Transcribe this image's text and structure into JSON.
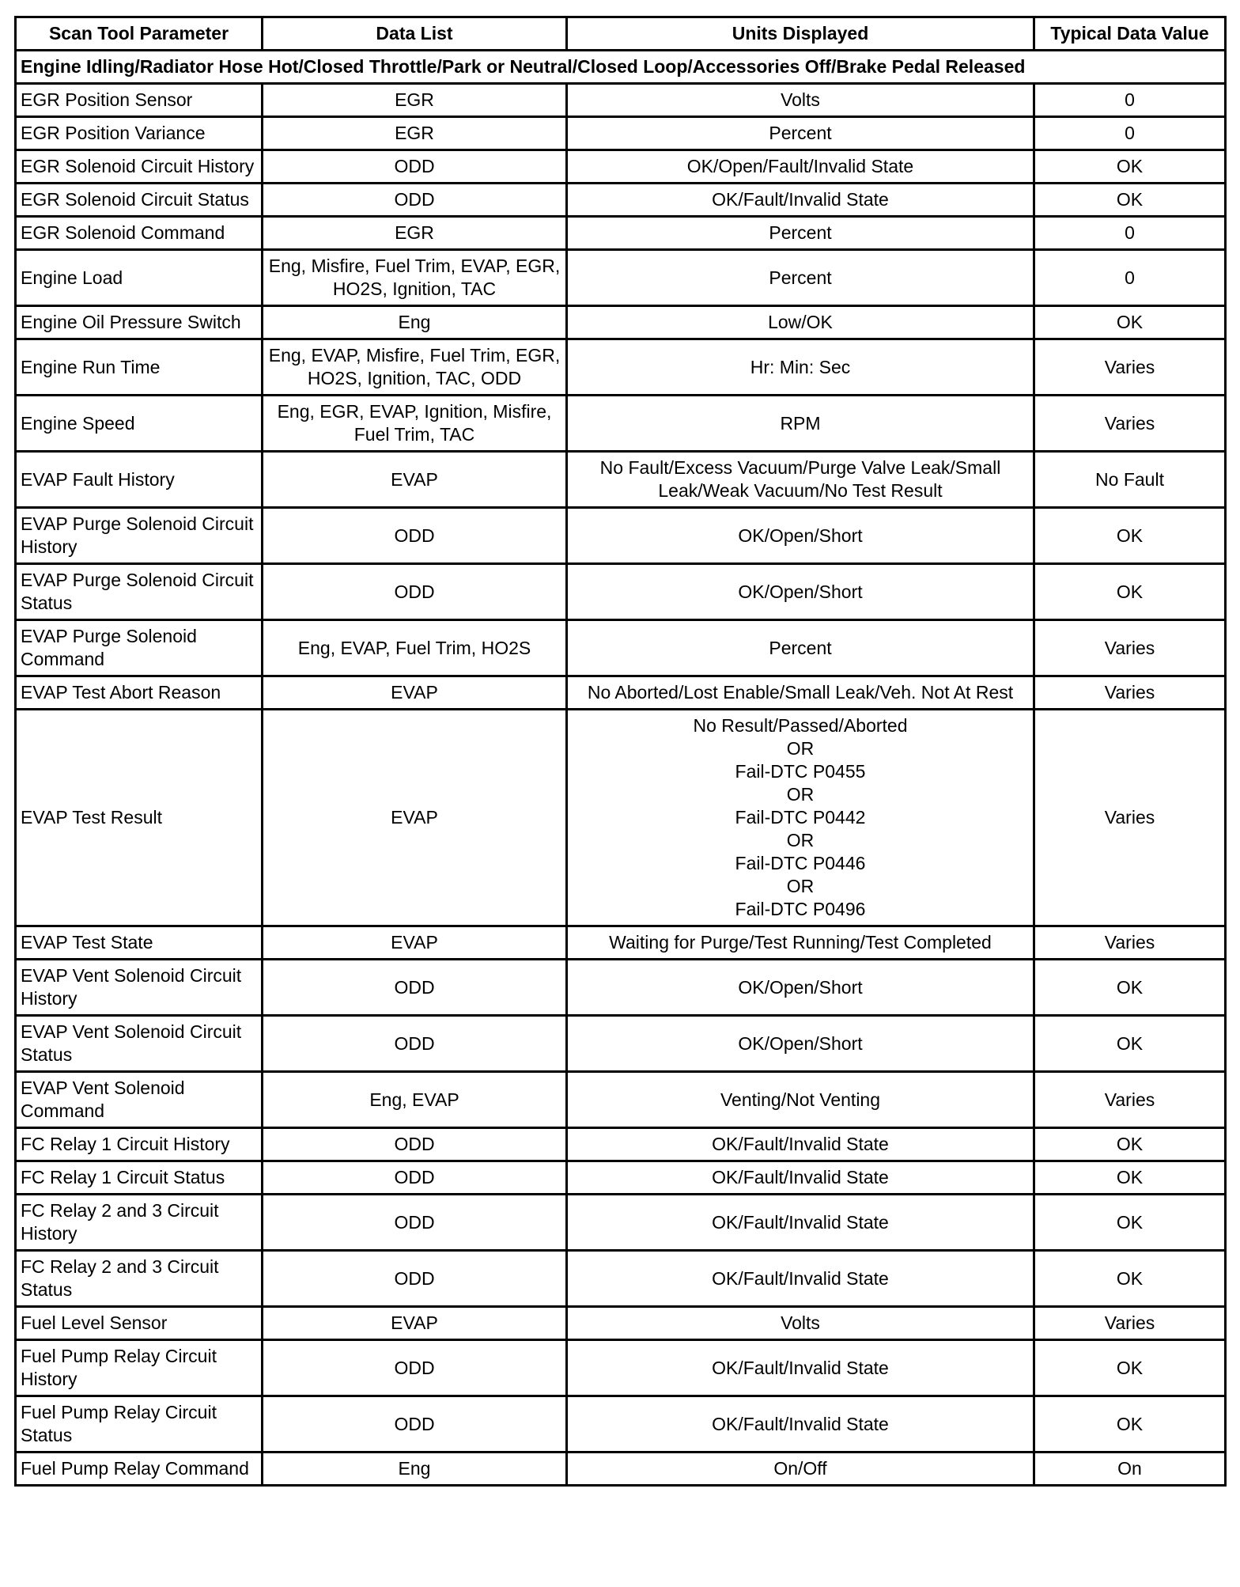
{
  "headers": [
    "Scan Tool Parameter",
    "Data List",
    "Units Displayed",
    "Typical Data Value"
  ],
  "section": "Engine Idling/Radiator Hose Hot/Closed Throttle/Park or Neutral/Closed Loop/Accessories Off/Brake Pedal Released",
  "rows": [
    [
      "EGR Position Sensor",
      "EGR",
      "Volts",
      "0"
    ],
    [
      "EGR Position Variance",
      "EGR",
      "Percent",
      "0"
    ],
    [
      "EGR Solenoid Circuit History",
      "ODD",
      "OK/Open/Fault/Invalid State",
      "OK"
    ],
    [
      "EGR Solenoid Circuit Status",
      "ODD",
      "OK/Fault/Invalid State",
      "OK"
    ],
    [
      "EGR Solenoid Command",
      "EGR",
      "Percent",
      "0"
    ],
    [
      "Engine Load",
      "Eng, Misfire, Fuel Trim, EVAP, EGR, HO2S, Ignition, TAC",
      "Percent",
      "0"
    ],
    [
      "Engine Oil Pressure Switch",
      "Eng",
      "Low/OK",
      "OK"
    ],
    [
      "Engine Run Time",
      "Eng, EVAP, Misfire, Fuel Trim, EGR, HO2S, Ignition, TAC, ODD",
      "Hr: Min: Sec",
      "Varies"
    ],
    [
      "Engine Speed",
      "Eng, EGR, EVAP, Ignition, Misfire, Fuel Trim, TAC",
      "RPM",
      "Varies"
    ],
    [
      "EVAP Fault History",
      "EVAP",
      "No Fault/Excess Vacuum/Purge Valve Leak/Small Leak/Weak Vacuum/No Test Result",
      "No Fault"
    ],
    [
      "EVAP Purge Solenoid Circuit History",
      "ODD",
      "OK/Open/Short",
      "OK"
    ],
    [
      "EVAP Purge Solenoid Circuit Status",
      "ODD",
      "OK/Open/Short",
      "OK"
    ],
    [
      "EVAP Purge Solenoid Command",
      "Eng, EVAP, Fuel Trim, HO2S",
      "Percent",
      "Varies"
    ],
    [
      "EVAP Test Abort Reason",
      "EVAP",
      "No Aborted/Lost Enable/Small Leak/Veh. Not At Rest",
      "Varies"
    ],
    [
      "EVAP Test Result",
      "EVAP",
      "No Result/Passed/Aborted\nOR\nFail-DTC P0455\nOR\nFail-DTC P0442\nOR\nFail-DTC P0446\nOR\nFail-DTC P0496",
      "Varies"
    ],
    [
      "EVAP Test State",
      "EVAP",
      "Waiting for Purge/Test Running/Test Completed",
      "Varies"
    ],
    [
      "EVAP Vent Solenoid Circuit History",
      "ODD",
      "OK/Open/Short",
      "OK"
    ],
    [
      "EVAP Vent Solenoid Circuit Status",
      "ODD",
      "OK/Open/Short",
      "OK"
    ],
    [
      "EVAP Vent Solenoid Command",
      "Eng, EVAP",
      "Venting/Not Venting",
      "Varies"
    ],
    [
      "FC Relay 1 Circuit History",
      "ODD",
      "OK/Fault/Invalid State",
      "OK"
    ],
    [
      "FC Relay 1 Circuit Status",
      "ODD",
      "OK/Fault/Invalid State",
      "OK"
    ],
    [
      "FC Relay 2 and 3 Circuit History",
      "ODD",
      "OK/Fault/Invalid State",
      "OK"
    ],
    [
      "FC Relay 2 and 3 Circuit Status",
      "ODD",
      "OK/Fault/Invalid State",
      "OK"
    ],
    [
      "Fuel Level Sensor",
      "EVAP",
      "Volts",
      "Varies"
    ],
    [
      "Fuel Pump Relay Circuit History",
      "ODD",
      "OK/Fault/Invalid State",
      "OK"
    ],
    [
      "Fuel Pump Relay Circuit Status",
      "ODD",
      "OK/Fault/Invalid State",
      "OK"
    ],
    [
      "Fuel Pump Relay Command",
      "Eng",
      "On/Off",
      "On"
    ]
  ]
}
